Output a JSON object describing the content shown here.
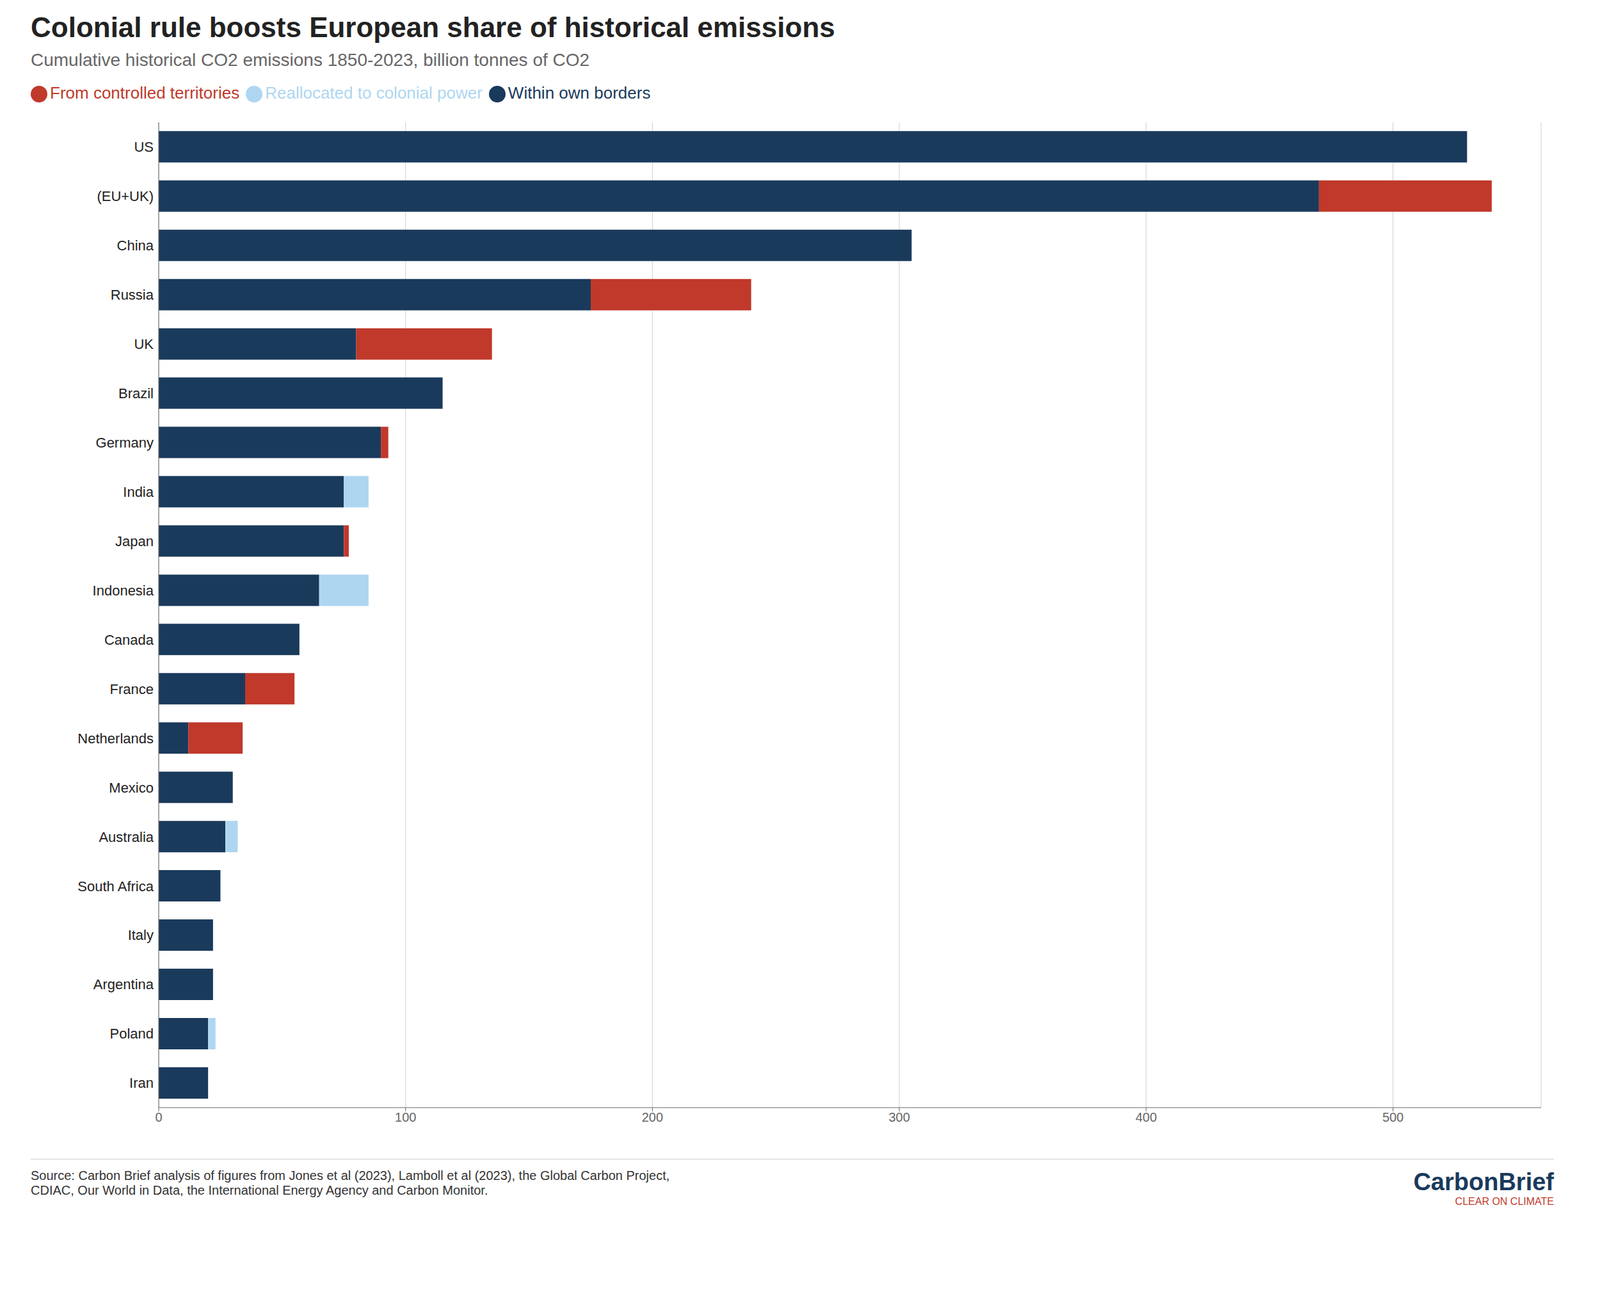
{
  "chart_data": {
    "type": "bar",
    "orientation": "horizontal",
    "stacked": true,
    "title": "Colonial rule boosts European share of historical emissions",
    "subtitle": "Cumulative historical CO2 emissions 1850-2023, billion tonnes of CO2",
    "categories": [
      "US",
      "(EU+UK)",
      "China",
      "Russia",
      "UK",
      "Brazil",
      "Germany",
      "India",
      "Japan",
      "Indonesia",
      "Canada",
      "France",
      "Netherlands",
      "Mexico",
      "Australia",
      "South Africa",
      "Italy",
      "Argentina",
      "Poland",
      "Iran"
    ],
    "series": [
      {
        "name": "Within own borders",
        "color": "#1a3a5c",
        "values": [
          530,
          470,
          305,
          175,
          80,
          115,
          90,
          75,
          75,
          65,
          57,
          35,
          12,
          30,
          27,
          25,
          22,
          22,
          20,
          20
        ]
      },
      {
        "name": "From controlled territories",
        "color": "#c0392b",
        "values": [
          0,
          70,
          0,
          65,
          55,
          0,
          3,
          0,
          2,
          0,
          0,
          20,
          22,
          0,
          0,
          0,
          0,
          0,
          0,
          0
        ]
      },
      {
        "name": "Reallocated to colonial power",
        "color": "#aed6f1",
        "values": [
          0,
          0,
          0,
          0,
          0,
          0,
          0,
          10,
          0,
          20,
          0,
          0,
          0,
          0,
          5,
          0,
          0,
          0,
          3,
          0
        ]
      }
    ],
    "xlim": [
      0,
      560
    ],
    "xticks": [
      0,
      100,
      200,
      300,
      400,
      500
    ],
    "grid": true,
    "legend": "top",
    "annotations": [
      "Source: Carbon Brief analysis of figures from Jones et al (2023), Lamboll et al (2023), the Global Carbon Project,\nCDIAC, Our World in Data, the International Energy Agency and Carbon Monitor.",
      "CarbonBrief",
      "CLEAR ON CLIMATE"
    ]
  }
}
